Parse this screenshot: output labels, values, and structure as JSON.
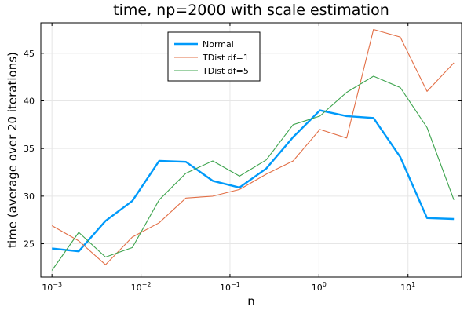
{
  "chart_data": {
    "type": "line",
    "title": "time, np=2000 with scale estimation",
    "xlabel": "n",
    "ylabel": "time (average over 20 iterations)",
    "xscale": "log10",
    "xlim": [
      0.00075,
      40
    ],
    "ylim": [
      21.5,
      48.2
    ],
    "x_ticks": [
      {
        "value": 0.001,
        "base": "10",
        "exp": "−3"
      },
      {
        "value": 0.01,
        "base": "10",
        "exp": "−2"
      },
      {
        "value": 0.1,
        "base": "10",
        "exp": "−1"
      },
      {
        "value": 1,
        "base": "10",
        "exp": "0"
      },
      {
        "value": 10,
        "base": "10",
        "exp": "1"
      }
    ],
    "y_ticks": [
      25,
      30,
      35,
      40,
      45
    ],
    "grid": true,
    "legend_position": "top-center",
    "x": [
      0.001,
      0.002,
      0.004,
      0.008,
      0.016,
      0.032,
      0.064,
      0.128,
      0.256,
      0.512,
      1.024,
      2.048,
      4.096,
      8.192,
      16.384,
      32.768
    ],
    "series": [
      {
        "name": "Normal",
        "color": "#009AFA",
        "width": 2.4,
        "values": [
          24.5,
          24.2,
          27.4,
          29.5,
          33.7,
          33.6,
          31.6,
          30.9,
          32.9,
          36.2,
          39.0,
          38.4,
          38.2,
          34.1,
          27.7,
          27.6
        ]
      },
      {
        "name": "TDist df=1",
        "color": "#E26F46",
        "width": 1.1,
        "values": [
          26.9,
          25.3,
          22.8,
          25.7,
          27.2,
          29.8,
          30.0,
          30.7,
          32.3,
          33.7,
          37.0,
          36.1,
          47.5,
          46.7,
          41.0,
          44.0
        ]
      },
      {
        "name": "TDist df=5",
        "color": "#3EA44E",
        "width": 1.1,
        "values": [
          22.2,
          26.2,
          23.6,
          24.6,
          29.6,
          32.4,
          33.7,
          32.1,
          33.8,
          37.5,
          38.4,
          40.9,
          42.6,
          41.4,
          37.2,
          29.6
        ]
      }
    ]
  }
}
